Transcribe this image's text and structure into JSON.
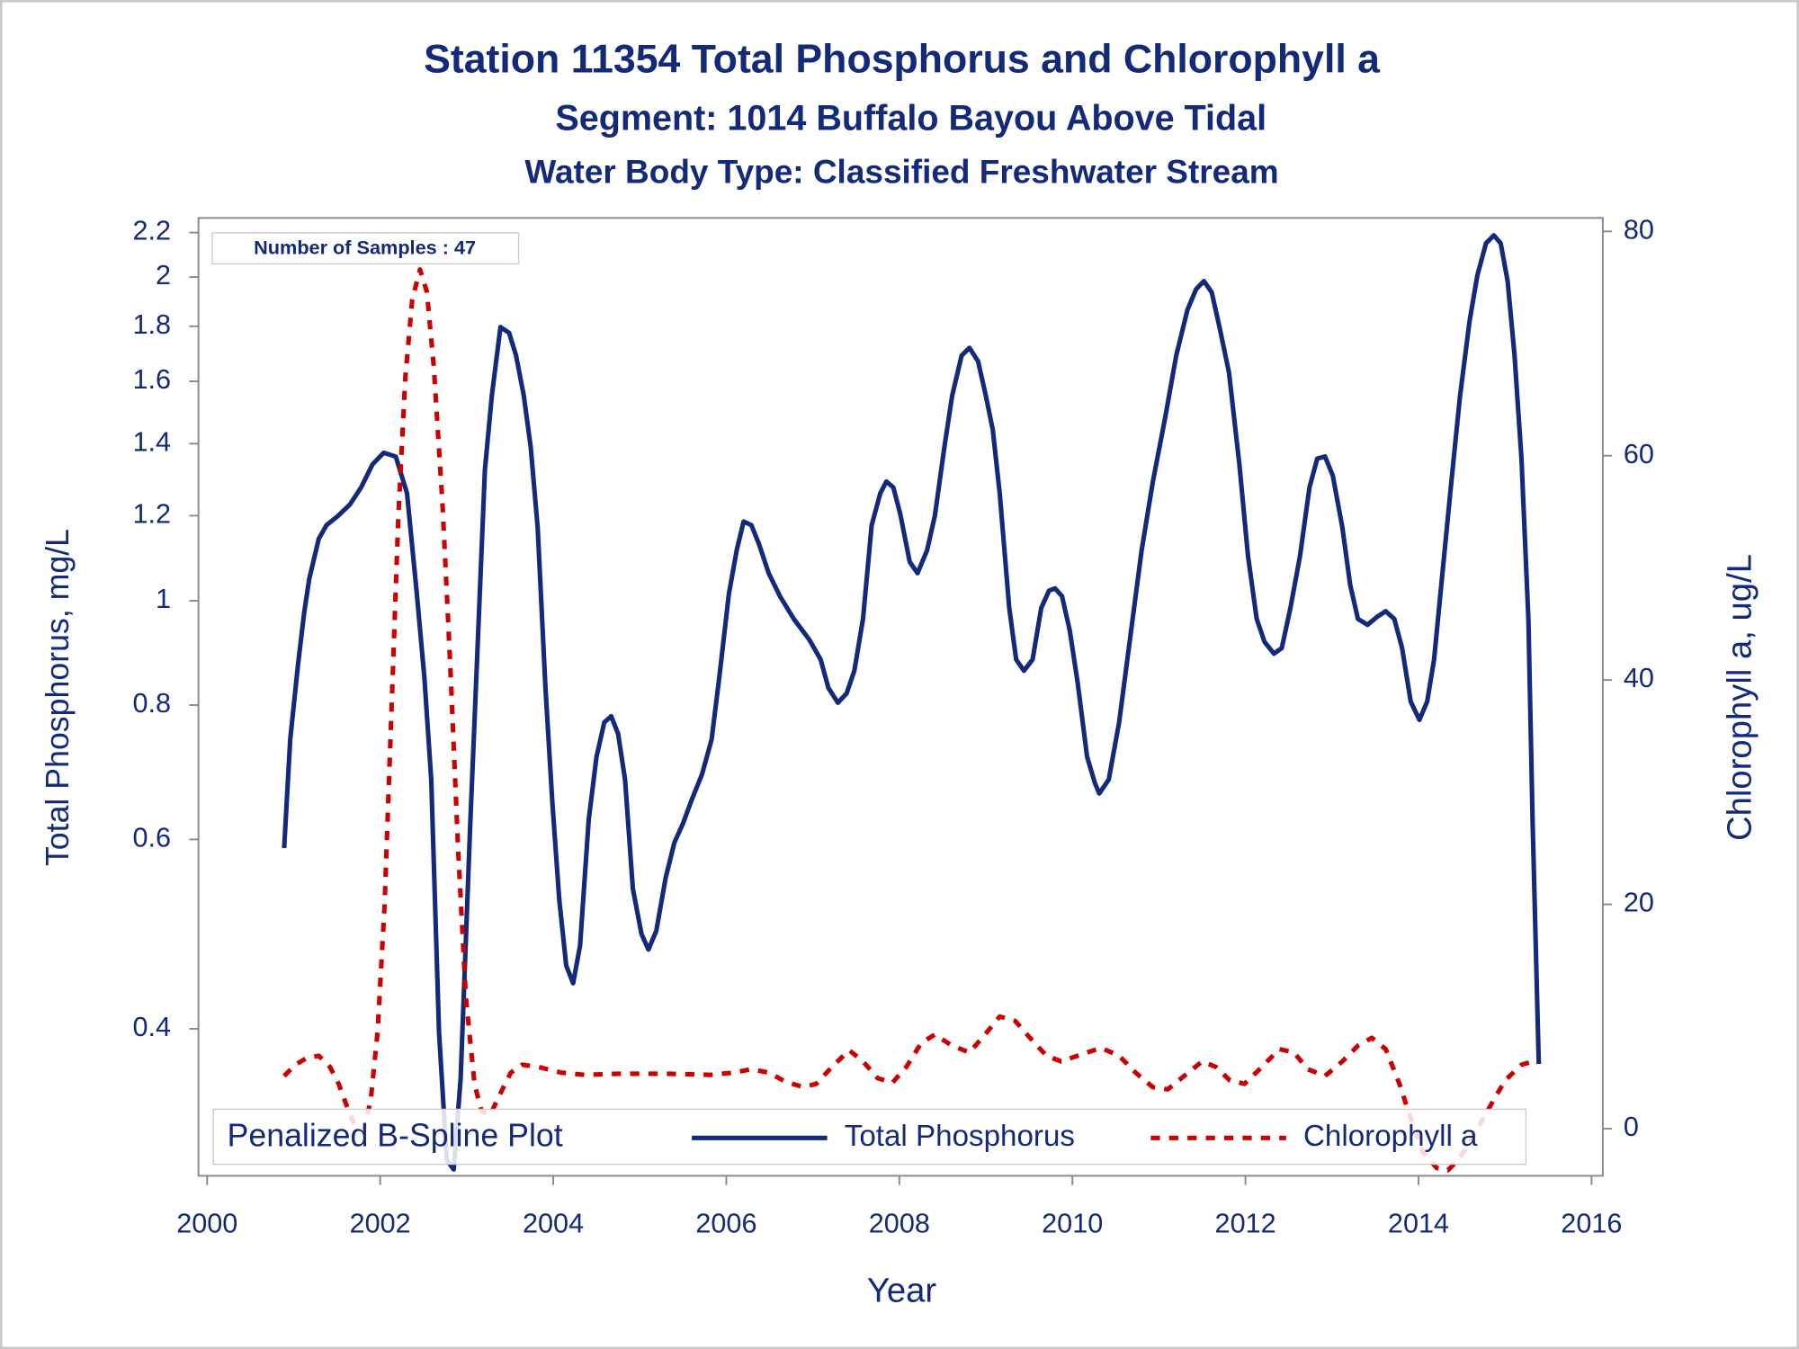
{
  "chart_data": {
    "type": "line",
    "title": "Station 11354  Total Phosphorus and Chlorophyll a",
    "subtitles": [
      "Segment: 1014  Buffalo Bayou Above Tidal",
      "Water Body Type: Classified Freshwater Stream"
    ],
    "xlabel": "Year",
    "ylabel": "Total Phosphorus, mg/L",
    "y2label": "Chlorophyll a, ug/L",
    "annotation": "Number of Samples : 47",
    "legend_title": "Penalized B-Spline Plot",
    "legend": "bottom",
    "yscale": "log",
    "xlim": [
      1999.9,
      2016.13
    ],
    "xticks": [
      2000,
      2002,
      2004,
      2006,
      2008,
      2010,
      2012,
      2014,
      2016
    ],
    "ylim": [
      0.292,
      2.27
    ],
    "yticks": [
      0.4,
      0.6,
      0.8,
      1,
      1.2,
      1.4,
      1.6,
      1.8,
      2,
      2.2
    ],
    "y2lim": [
      -4.2,
      81.2
    ],
    "y2ticks": [
      0,
      20,
      40,
      60,
      80
    ],
    "series": [
      {
        "name": "Total Phosphorus",
        "color": "#13297a",
        "line_style": "solid",
        "x": [
          2000.89,
          2000.96,
          2001.05,
          2001.12,
          2001.18,
          2001.29,
          2001.38,
          2001.51,
          2001.65,
          2001.78,
          2001.91,
          2002.04,
          2002.18,
          2002.31,
          2002.42,
          2002.51,
          2002.59,
          2002.68,
          2002.77,
          2002.85,
          2002.93,
          2003.04,
          2003.15,
          2003.21,
          2003.29,
          2003.39,
          2003.49,
          2003.57,
          2003.66,
          2003.74,
          2003.82,
          2003.91,
          2003.99,
          2004.07,
          2004.15,
          2004.23,
          2004.31,
          2004.41,
          2004.5,
          2004.59,
          2004.67,
          2004.75,
          2004.83,
          2004.92,
          2005.02,
          2005.1,
          2005.19,
          2005.3,
          2005.4,
          2005.5,
          2005.6,
          2005.72,
          2005.83,
          2005.92,
          2006.03,
          2006.12,
          2006.2,
          2006.29,
          2006.38,
          2006.49,
          2006.62,
          2006.78,
          2006.96,
          2007.09,
          2007.18,
          2007.29,
          2007.39,
          2007.48,
          2007.58,
          2007.68,
          2007.78,
          2007.85,
          2007.93,
          2008.01,
          2008.12,
          2008.21,
          2008.32,
          2008.41,
          2008.52,
          2008.61,
          2008.72,
          2008.81,
          2008.91,
          2009.0,
          2009.08,
          2009.16,
          2009.27,
          2009.35,
          2009.44,
          2009.54,
          2009.64,
          2009.73,
          2009.8,
          2009.88,
          2009.97,
          2010.06,
          2010.17,
          2010.26,
          2010.31,
          2010.42,
          2010.54,
          2010.67,
          2010.8,
          2010.93,
          2011.07,
          2011.2,
          2011.33,
          2011.43,
          2011.52,
          2011.61,
          2011.7,
          2011.81,
          2011.93,
          2012.03,
          2012.13,
          2012.22,
          2012.33,
          2012.42,
          2012.52,
          2012.63,
          2012.74,
          2012.83,
          2012.92,
          2013.01,
          2013.12,
          2013.21,
          2013.3,
          2013.41,
          2013.52,
          2013.62,
          2013.72,
          2013.81,
          2013.91,
          2014.01,
          2014.1,
          2014.18,
          2014.27,
          2014.38,
          2014.48,
          2014.59,
          2014.68,
          2014.78,
          2014.87,
          2014.95,
          2015.03,
          2015.11,
          2015.19,
          2015.27,
          2015.32,
          2015.39
        ],
        "values": [
          0.589,
          0.743,
          0.872,
          0.973,
          1.048,
          1.142,
          1.176,
          1.199,
          1.229,
          1.275,
          1.339,
          1.373,
          1.362,
          1.259,
          1.022,
          0.85,
          0.682,
          0.397,
          0.302,
          0.296,
          0.36,
          0.618,
          1.01,
          1.323,
          1.551,
          1.797,
          1.775,
          1.691,
          1.551,
          1.389,
          1.17,
          0.83,
          0.649,
          0.527,
          0.458,
          0.441,
          0.478,
          0.626,
          0.716,
          0.771,
          0.781,
          0.752,
          0.682,
          0.54,
          0.49,
          0.474,
          0.493,
          0.553,
          0.596,
          0.621,
          0.653,
          0.69,
          0.743,
          0.85,
          1.015,
          1.114,
          1.185,
          1.176,
          1.128,
          1.061,
          1.01,
          0.962,
          0.92,
          0.882,
          0.83,
          0.804,
          0.82,
          0.861,
          0.962,
          1.176,
          1.259,
          1.291,
          1.275,
          1.205,
          1.087,
          1.061,
          1.114,
          1.199,
          1.389,
          1.551,
          1.691,
          1.719,
          1.67,
          1.551,
          1.442,
          1.259,
          0.985,
          0.882,
          0.861,
          0.882,
          0.985,
          1.022,
          1.027,
          1.01,
          0.938,
          0.84,
          0.716,
          0.677,
          0.662,
          0.682,
          0.771,
          0.927,
          1.114,
          1.291,
          1.477,
          1.691,
          1.865,
          1.949,
          1.983,
          1.936,
          1.797,
          1.63,
          1.339,
          1.1,
          0.962,
          0.916,
          0.893,
          0.904,
          0.985,
          1.1,
          1.275,
          1.356,
          1.362,
          1.307,
          1.17,
          1.035,
          0.962,
          0.95,
          0.966,
          0.978,
          0.962,
          0.904,
          0.806,
          0.775,
          0.806,
          0.882,
          1.048,
          1.291,
          1.551,
          1.82,
          2.007,
          2.15,
          2.187,
          2.15,
          1.983,
          1.691,
          1.356,
          0.962,
          0.618,
          0.371
        ]
      },
      {
        "name": "Chlorophyll a",
        "color": "#cc0000",
        "line_style": "dashed",
        "axis": "y2",
        "x": [
          2000.89,
          2001.02,
          2001.15,
          2001.29,
          2001.42,
          2001.52,
          2001.62,
          2001.71,
          2001.81,
          2001.89,
          2001.97,
          2002.05,
          2002.13,
          2002.21,
          2002.29,
          2002.37,
          2002.46,
          2002.54,
          2002.62,
          2002.72,
          2002.81,
          2002.9,
          2002.99,
          2003.09,
          2003.17,
          2003.27,
          2003.38,
          2003.51,
          2003.64,
          2003.83,
          2004.09,
          2004.36,
          2004.76,
          2005.29,
          2005.82,
          2006.09,
          2006.29,
          2006.49,
          2006.68,
          2006.89,
          2007.04,
          2007.22,
          2007.42,
          2007.58,
          2007.75,
          2007.92,
          2008.08,
          2008.25,
          2008.41,
          2008.61,
          2008.81,
          2008.98,
          2009.16,
          2009.34,
          2009.51,
          2009.7,
          2009.87,
          2010.06,
          2010.33,
          2010.54,
          2010.73,
          2010.93,
          2011.1,
          2011.26,
          2011.5,
          2011.66,
          2011.82,
          2011.99,
          2012.19,
          2012.39,
          2012.56,
          2012.72,
          2012.92,
          2013.12,
          2013.3,
          2013.46,
          2013.62,
          2013.78,
          2013.91,
          2014.05,
          2014.21,
          2014.34,
          2014.47,
          2014.64,
          2014.82,
          2015.0,
          2015.19,
          2015.37
        ],
        "values": [
          4.7,
          5.7,
          6.3,
          6.5,
          5.5,
          4.0,
          1.9,
          0.2,
          -0.1,
          2.5,
          8.6,
          19.8,
          37.2,
          54.6,
          66.9,
          73.9,
          76.6,
          74.6,
          67.9,
          55.7,
          41.3,
          25.0,
          11.7,
          4.0,
          1.6,
          1.2,
          3.0,
          5.0,
          5.7,
          5.5,
          5.0,
          4.8,
          4.9,
          4.9,
          4.8,
          5.0,
          5.3,
          5.0,
          4.2,
          3.7,
          4.0,
          5.5,
          7.0,
          6.0,
          4.5,
          4.1,
          5.5,
          7.6,
          8.4,
          7.4,
          6.8,
          8.3,
          10.0,
          9.6,
          8.1,
          6.5,
          6.0,
          6.5,
          7.2,
          6.5,
          5.0,
          3.7,
          3.5,
          4.5,
          6.0,
          5.5,
          4.3,
          4.0,
          5.5,
          7.1,
          6.8,
          5.3,
          4.7,
          6.0,
          7.4,
          8.1,
          7.1,
          4.0,
          0.9,
          -2.1,
          -3.5,
          -3.7,
          -2.7,
          -0.6,
          1.9,
          4.3,
          5.7,
          6.1
        ]
      }
    ]
  }
}
